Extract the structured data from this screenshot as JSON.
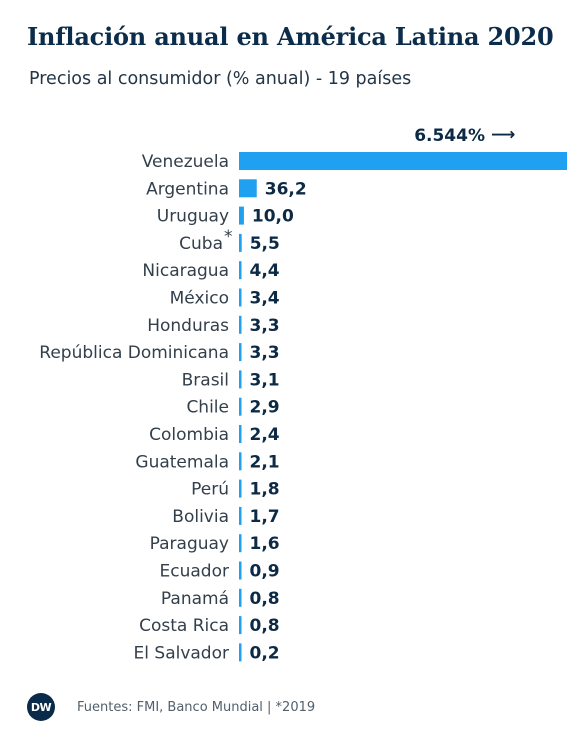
{
  "header": {
    "title": "Inflación anual en América Latina 2020",
    "subtitle": "Precios al consumidor (% anual) - 19 países"
  },
  "chart_data": {
    "type": "bar",
    "orientation": "horizontal",
    "title": "Inflación anual en América Latina 2020",
    "subtitle": "Precios al consumidor (% anual) - 19 países",
    "bar_color": "#1fa0f0",
    "categories": [
      "Venezuela",
      "Argentina",
      "Uruguay",
      "Cuba",
      "Nicaragua",
      "México",
      "Honduras",
      "República Dominicana",
      "Brasil",
      "Chile",
      "Colombia",
      "Guatemala",
      "Perú",
      "Bolivia",
      "Paraguay",
      "Ecuador",
      "Panamá",
      "Costa Rica",
      "El Salvador"
    ],
    "category_markers": [
      "",
      "",
      "",
      "*",
      "",
      "",
      "",
      "",
      "",
      "",
      "",
      "",
      "",
      "",
      "",
      "",
      "",
      "",
      ""
    ],
    "values": [
      6544,
      36.2,
      10.0,
      5.5,
      4.4,
      3.4,
      3.3,
      3.3,
      3.1,
      2.9,
      2.4,
      2.1,
      1.8,
      1.7,
      1.6,
      0.9,
      0.8,
      0.8,
      0.2
    ],
    "value_labels": [
      "6.544%",
      "36,2",
      "10,0",
      "5,5",
      "4,4",
      "3,4",
      "3,3",
      "3,3",
      "3,1",
      "2,9",
      "2,4",
      "2,1",
      "1,8",
      "1,7",
      "1,6",
      "0,9",
      "0,8",
      "0,8",
      "0,2"
    ],
    "annotation_arrow": "⟶",
    "bar_truncated": [
      true,
      false,
      false,
      false,
      false,
      false,
      false,
      false,
      false,
      false,
      false,
      false,
      false,
      false,
      false,
      false,
      false,
      false,
      false
    ]
  },
  "footer": {
    "logo_text": "DW",
    "source": "Fuentes: FMI, Banco Mundial | *2019"
  }
}
